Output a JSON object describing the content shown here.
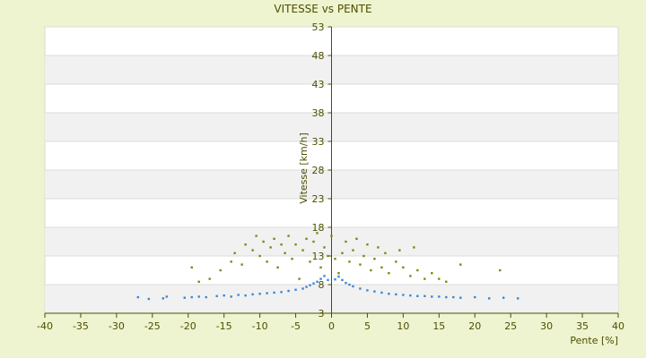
{
  "chart_data": {
    "type": "scatter",
    "title": "VITESSE vs PENTE",
    "xlabel": "Pente [%]",
    "ylabel": "Vitesse [km/h]",
    "xlim": [
      -40,
      40
    ],
    "ylim": [
      3,
      53
    ],
    "x_ticks": [
      -40,
      -35,
      -30,
      -25,
      -20,
      -15,
      -10,
      -5,
      0,
      5,
      10,
      15,
      20,
      25,
      30,
      35,
      40
    ],
    "y_ticks": [
      3,
      8,
      13,
      18,
      23,
      28,
      33,
      38,
      43,
      48,
      53
    ],
    "grid": "horizontal alternating bands",
    "legend": "none",
    "series": [
      {
        "color": "#7a8a10",
        "points": [
          [
            -19.5,
            11.0
          ],
          [
            -18.5,
            8.5
          ],
          [
            -17.0,
            9.0
          ],
          [
            -15.5,
            10.5
          ],
          [
            -14.0,
            12.0
          ],
          [
            -13.5,
            13.5
          ],
          [
            -12.5,
            11.5
          ],
          [
            -12.0,
            15.0
          ],
          [
            -11.0,
            14.0
          ],
          [
            -10.5,
            16.5
          ],
          [
            -10.0,
            13.0
          ],
          [
            -9.5,
            15.5
          ],
          [
            -9.0,
            12.0
          ],
          [
            -8.5,
            14.5
          ],
          [
            -8.0,
            16.0
          ],
          [
            -7.5,
            11.0
          ],
          [
            -7.0,
            15.0
          ],
          [
            -6.5,
            13.5
          ],
          [
            -6.0,
            16.5
          ],
          [
            -5.5,
            12.5
          ],
          [
            -5.0,
            15.0
          ],
          [
            -4.5,
            9.0
          ],
          [
            -4.0,
            14.0
          ],
          [
            -3.5,
            16.0
          ],
          [
            -3.0,
            12.0
          ],
          [
            -2.5,
            15.5
          ],
          [
            -2.0,
            17.0
          ],
          [
            -1.5,
            11.0
          ],
          [
            -1.0,
            14.5
          ],
          [
            -0.5,
            13.0
          ],
          [
            0.0,
            16.5
          ],
          [
            0.5,
            12.5
          ],
          [
            1.0,
            10.0
          ],
          [
            1.5,
            13.5
          ],
          [
            2.0,
            15.5
          ],
          [
            2.5,
            12.0
          ],
          [
            3.0,
            14.0
          ],
          [
            3.5,
            16.0
          ],
          [
            4.0,
            11.5
          ],
          [
            4.5,
            13.0
          ],
          [
            5.0,
            15.0
          ],
          [
            5.5,
            10.5
          ],
          [
            6.0,
            12.5
          ],
          [
            6.5,
            14.5
          ],
          [
            7.0,
            11.0
          ],
          [
            7.5,
            13.5
          ],
          [
            8.0,
            10.0
          ],
          [
            9.0,
            12.0
          ],
          [
            9.5,
            14.0
          ],
          [
            10.0,
            11.0
          ],
          [
            11.0,
            9.5
          ],
          [
            11.5,
            14.5
          ],
          [
            12.0,
            10.5
          ],
          [
            13.0,
            9.0
          ],
          [
            14.0,
            10.0
          ],
          [
            15.0,
            9.0
          ],
          [
            16.0,
            8.5
          ],
          [
            18.0,
            11.5
          ],
          [
            23.5,
            10.5
          ]
        ]
      },
      {
        "color": "#3a87d6",
        "points": [
          [
            -27.0,
            5.8
          ],
          [
            -25.5,
            5.5
          ],
          [
            -23.5,
            5.6
          ],
          [
            -23.0,
            5.9
          ],
          [
            -20.5,
            5.7
          ],
          [
            -19.5,
            5.8
          ],
          [
            -18.5,
            5.9
          ],
          [
            -17.5,
            5.8
          ],
          [
            -16.0,
            6.0
          ],
          [
            -15.0,
            6.1
          ],
          [
            -14.0,
            5.9
          ],
          [
            -13.0,
            6.2
          ],
          [
            -12.0,
            6.1
          ],
          [
            -11.0,
            6.3
          ],
          [
            -10.0,
            6.4
          ],
          [
            -9.0,
            6.5
          ],
          [
            -8.0,
            6.6
          ],
          [
            -7.0,
            6.7
          ],
          [
            -6.0,
            6.9
          ],
          [
            -5.0,
            7.1
          ],
          [
            -4.0,
            7.3
          ],
          [
            -3.5,
            7.6
          ],
          [
            -3.0,
            7.9
          ],
          [
            -2.5,
            8.2
          ],
          [
            -2.0,
            8.5
          ],
          [
            -1.5,
            9.0
          ],
          [
            -1.0,
            9.5
          ],
          [
            -0.5,
            8.8
          ],
          [
            0.5,
            8.9
          ],
          [
            1.0,
            9.4
          ],
          [
            1.5,
            8.8
          ],
          [
            2.0,
            8.3
          ],
          [
            2.5,
            8.0
          ],
          [
            3.0,
            7.7
          ],
          [
            4.0,
            7.3
          ],
          [
            5.0,
            7.0
          ],
          [
            6.0,
            6.8
          ],
          [
            7.0,
            6.6
          ],
          [
            8.0,
            6.4
          ],
          [
            9.0,
            6.3
          ],
          [
            10.0,
            6.2
          ],
          [
            11.0,
            6.1
          ],
          [
            12.0,
            6.0
          ],
          [
            13.0,
            6.0
          ],
          [
            14.0,
            5.9
          ],
          [
            15.0,
            5.9
          ],
          [
            16.0,
            5.8
          ],
          [
            17.0,
            5.8
          ],
          [
            18.0,
            5.7
          ],
          [
            20.0,
            5.8
          ],
          [
            22.0,
            5.6
          ],
          [
            24.0,
            5.7
          ],
          [
            26.0,
            5.6
          ]
        ]
      }
    ]
  }
}
